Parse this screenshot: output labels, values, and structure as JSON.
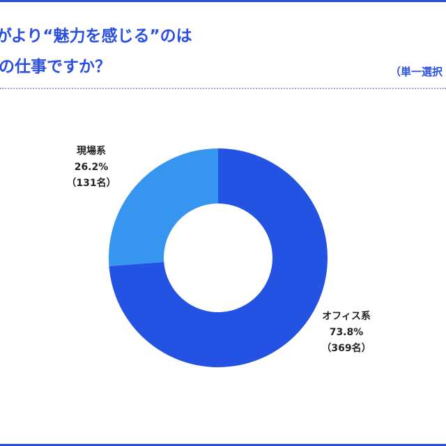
{
  "title": {
    "line1": "がより“魅力を感じる”のは",
    "line2": "の仕事ですか？"
  },
  "note": "（単一選択",
  "chart_data": {
    "type": "pie",
    "donut": true,
    "slices": [
      {
        "name": "オフィス系",
        "percent_label": "73.8%",
        "count_label": "（369名）",
        "value": 73.8,
        "color": "#2452e2"
      },
      {
        "name": "現場系",
        "percent_label": "26.2%",
        "count_label": "（131名）",
        "value": 26.2,
        "color": "#3595ef"
      }
    ]
  }
}
